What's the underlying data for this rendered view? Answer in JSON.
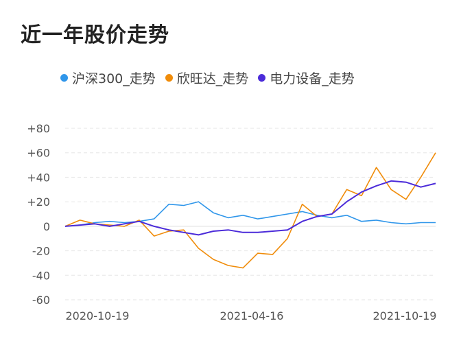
{
  "title": "近一年股价走势",
  "colors": {
    "hs300": "#2f96ea",
    "xinwangda": "#f08c0a",
    "dianli": "#4b2bd9",
    "grid": "#e6e6e6"
  },
  "chart_data": {
    "type": "line",
    "title": "近一年股价走势",
    "xlabel": "",
    "ylabel": "",
    "ylim": [
      -60,
      80
    ],
    "y_ticks": [
      "+80",
      "+60",
      "+40",
      "+20",
      "0",
      "-20",
      "-40",
      "-60"
    ],
    "y_tick_values": [
      80,
      60,
      40,
      20,
      0,
      -20,
      -40,
      -60
    ],
    "x_tick_labels": [
      "2020-10-19",
      "2021-04-16",
      "2021-10-19"
    ],
    "legend_position": "top",
    "grid": true,
    "x": [
      0,
      4,
      8,
      12,
      16,
      20,
      24,
      28,
      32,
      36,
      40,
      44,
      48,
      52,
      56,
      60,
      64,
      68,
      72,
      76,
      80,
      84,
      88,
      92,
      96,
      100
    ],
    "series": [
      {
        "name": "沪深300_走势",
        "values": [
          0,
          1,
          3,
          4,
          3,
          4,
          6,
          18,
          17,
          20,
          11,
          7,
          9,
          6,
          8,
          10,
          12,
          9,
          7,
          9,
          4,
          5,
          3,
          2,
          3,
          3
        ]
      },
      {
        "name": "欣旺达_走势",
        "values": [
          0,
          5,
          2,
          1,
          0,
          5,
          -8,
          -4,
          -3,
          -18,
          -27,
          -32,
          -34,
          -22,
          -23,
          -10,
          18,
          8,
          10,
          30,
          25,
          48,
          30,
          22,
          40,
          60
        ]
      },
      {
        "name": "电力设备_走势",
        "values": [
          0,
          1,
          2,
          0,
          2,
          4,
          0,
          -3,
          -5,
          -7,
          -4,
          -3,
          -5,
          -5,
          -4,
          -3,
          4,
          8,
          10,
          20,
          28,
          33,
          37,
          36,
          32,
          35
        ]
      }
    ]
  }
}
